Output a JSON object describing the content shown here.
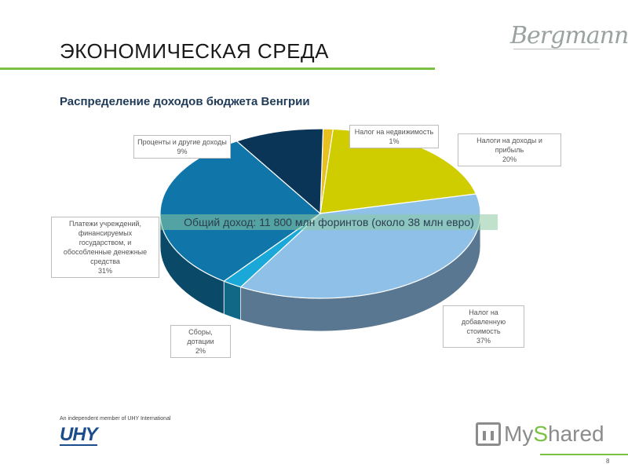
{
  "slide": {
    "title": "ЭКОНОМИЧЕСКАЯ СРЕДА",
    "brand": "Bergmann",
    "member_text": "An independent member of UHY International",
    "uhy_logo": "UHY",
    "watermark": {
      "prefix": "My",
      "highlight": "S",
      "suffix": "hared"
    },
    "page_number": "8",
    "colors": {
      "accent": "#7ac143",
      "title_text": "#1a1a1a",
      "subtitle_text": "#1f3b57"
    }
  },
  "chart_data": {
    "type": "pie",
    "title": "Распределение доходов бюджета Венгрии",
    "annotation": "Общий доход: 11 800 млн форинтов (около 38 млн евро)",
    "unit": "%",
    "slices": [
      {
        "name": "Налог на недвижимость",
        "value": 1,
        "label": "1%",
        "color": "#e8c020"
      },
      {
        "name": "Налоги на доходы и прибыль",
        "value": 20,
        "label": "20%",
        "color": "#cfcc00"
      },
      {
        "name": "Налог на добавленную стоимость",
        "value": 37,
        "label": "37%",
        "color": "#8fc0e8"
      },
      {
        "name": "Сборы, дотации",
        "value": 2,
        "label": "2%",
        "color": "#1aa8d8"
      },
      {
        "name": "Платежи учреждений, финансируемых государством, и обособленные денежные средства",
        "value": 31,
        "label": "31%",
        "color": "#1075a8"
      },
      {
        "name": "Проценты и другие доходы",
        "value": 9,
        "label": "9%",
        "color": "#0b3557"
      }
    ]
  }
}
